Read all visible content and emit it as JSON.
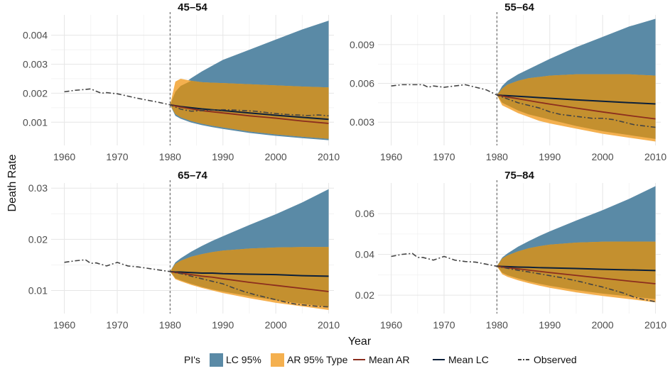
{
  "chart_data": {
    "type": "area",
    "xlabel": "Year",
    "ylabel": "Death Rate",
    "forecast_start": 1980,
    "x_ticks": [
      1960,
      1970,
      1980,
      1990,
      2000,
      2010
    ],
    "xlim": [
      1957.5,
      2011
    ],
    "legend": {
      "position": "bottom",
      "pi_title": "PI's",
      "pi_items": [
        {
          "label": "LC 95%",
          "color": "#5a8aa6"
        },
        {
          "label": "AR 95%",
          "color": "#f4b04f"
        }
      ],
      "type_title": "Type",
      "type_items": [
        {
          "label": "Mean AR",
          "color": "#8b2d1e",
          "dash": "solid"
        },
        {
          "label": "Mean LC",
          "color": "#0b1f3a",
          "dash": "solid"
        },
        {
          "label": "Observed",
          "color": "#444444",
          "dash": "dashdot"
        }
      ]
    },
    "panels": [
      {
        "title": "45–54",
        "ylim": [
          0.0002,
          0.0047
        ],
        "y_ticks": [
          0.001,
          0.002,
          0.003,
          0.004
        ],
        "y_tick_labels": [
          "0.001",
          "0.002",
          "0.003",
          "0.004"
        ],
        "observed": {
          "x": [
            1960,
            1962,
            1964,
            1965,
            1966,
            1967,
            1968,
            1970,
            1972,
            1974,
            1976,
            1978,
            1980,
            1982,
            1984,
            1986,
            1988,
            1990,
            1992,
            1994,
            1996,
            1998,
            2000,
            2002,
            2004,
            2006,
            2008,
            2010
          ],
          "y": [
            0.00205,
            0.0021,
            0.00213,
            0.00215,
            0.00207,
            0.002,
            0.00202,
            0.00198,
            0.0019,
            0.00182,
            0.00175,
            0.00168,
            0.0016,
            0.00145,
            0.00138,
            0.0014,
            0.00142,
            0.00143,
            0.00142,
            0.0014,
            0.00138,
            0.00134,
            0.0013,
            0.00127,
            0.00125,
            0.00123,
            0.00125,
            0.00122
          ]
        },
        "forecast_years": [
          1980,
          1981,
          1982,
          1984,
          1986,
          1988,
          1990,
          1995,
          2000,
          2005,
          2010
        ],
        "mean_lc": [
          0.0016,
          0.00157,
          0.00154,
          0.0015,
          0.00146,
          0.00143,
          0.0014,
          0.00132,
          0.00124,
          0.00117,
          0.0011
        ],
        "mean_ar": [
          0.0016,
          0.00156,
          0.00152,
          0.00146,
          0.0014,
          0.00136,
          0.00132,
          0.00122,
          0.00114,
          0.00104,
          0.00096
        ],
        "lc_lower": [
          0.0016,
          0.00122,
          0.00112,
          0.00099,
          0.0009,
          0.00083,
          0.00077,
          0.00063,
          0.00053,
          0.00045,
          0.00038
        ],
        "lc_upper": [
          0.0016,
          0.00205,
          0.00225,
          0.00252,
          0.00275,
          0.00295,
          0.00315,
          0.0035,
          0.00385,
          0.0042,
          0.0045
        ],
        "ar_lower": [
          0.0016,
          0.00128,
          0.00117,
          0.00104,
          0.00095,
          0.00088,
          0.00082,
          0.00068,
          0.00058,
          0.0005,
          0.00043
        ],
        "ar_upper": [
          0.0016,
          0.0024,
          0.0025,
          0.00243,
          0.00238,
          0.00236,
          0.00235,
          0.00231,
          0.00227,
          0.00223,
          0.0022
        ]
      },
      {
        "title": "55–64",
        "ylim": [
          0.0012,
          0.0113
        ],
        "y_ticks": [
          0.003,
          0.006,
          0.009
        ],
        "y_tick_labels": [
          "0.003",
          "0.006",
          "0.009"
        ],
        "observed": {
          "x": [
            1960,
            1962,
            1964,
            1966,
            1967,
            1968,
            1970,
            1972,
            1974,
            1976,
            1977,
            1978,
            1980,
            1982,
            1984,
            1986,
            1988,
            1990,
            1992,
            1994,
            1996,
            1998,
            2000,
            2002,
            2004,
            2006,
            2008,
            2010
          ],
          "y": [
            0.0058,
            0.0059,
            0.0059,
            0.0059,
            0.0057,
            0.0058,
            0.0057,
            0.0058,
            0.0059,
            0.0057,
            0.0056,
            0.0055,
            0.0051,
            0.0048,
            0.0045,
            0.0043,
            0.0041,
            0.0038,
            0.0036,
            0.0035,
            0.0034,
            0.0033,
            0.0033,
            0.0032,
            0.003,
            0.0028,
            0.0027,
            0.0026
          ]
        },
        "forecast_years": [
          1980,
          1981,
          1982,
          1984,
          1986,
          1988,
          1990,
          1995,
          2000,
          2005,
          2010
        ],
        "mean_lc": [
          0.0051,
          0.00507,
          0.00505,
          0.005,
          0.00495,
          0.0049,
          0.00485,
          0.00473,
          0.00462,
          0.00451,
          0.00441
        ],
        "mean_ar": [
          0.0051,
          0.00502,
          0.00495,
          0.00481,
          0.00467,
          0.00453,
          0.0044,
          0.00409,
          0.00379,
          0.00351,
          0.00325
        ],
        "lc_lower": [
          0.0051,
          0.0045,
          0.0043,
          0.0039,
          0.0036,
          0.0034,
          0.0032,
          0.0027,
          0.0023,
          0.002,
          0.0017
        ],
        "lc_upper": [
          0.0051,
          0.0058,
          0.0062,
          0.0067,
          0.0071,
          0.0075,
          0.0079,
          0.0088,
          0.0096,
          0.0104,
          0.011
        ],
        "ar_lower": [
          0.0051,
          0.0043,
          0.0041,
          0.0037,
          0.0034,
          0.0031,
          0.0029,
          0.0025,
          0.0021,
          0.0018,
          0.0015
        ],
        "ar_upper": [
          0.0051,
          0.0056,
          0.0059,
          0.0062,
          0.0064,
          0.0065,
          0.0066,
          0.0067,
          0.0067,
          0.0067,
          0.0066
        ]
      },
      {
        "title": "65–74",
        "ylim": [
          0.0055,
          0.031
        ],
        "y_ticks": [
          0.01,
          0.02,
          0.03
        ],
        "y_tick_labels": [
          "0.01",
          "0.02",
          "0.03"
        ],
        "observed": {
          "x": [
            1960,
            1962,
            1964,
            1965,
            1966,
            1968,
            1970,
            1972,
            1974,
            1976,
            1978,
            1980,
            1982,
            1984,
            1986,
            1988,
            1990,
            1992,
            1994,
            1996,
            1998,
            2000,
            2002,
            2004,
            2006,
            2008,
            2010
          ],
          "y": [
            0.0155,
            0.0158,
            0.016,
            0.0153,
            0.0154,
            0.0148,
            0.0155,
            0.0148,
            0.0146,
            0.0143,
            0.014,
            0.0137,
            0.0133,
            0.0128,
            0.0123,
            0.0118,
            0.0113,
            0.0105,
            0.0098,
            0.0092,
            0.0087,
            0.0082,
            0.0077,
            0.0073,
            0.0071,
            0.0069,
            0.0068
          ]
        },
        "forecast_years": [
          1980,
          1981,
          1982,
          1984,
          1986,
          1988,
          1990,
          1995,
          2000,
          2005,
          2010
        ],
        "mean_lc": [
          0.0137,
          0.0136,
          0.0136,
          0.0135,
          0.0134,
          0.0134,
          0.0133,
          0.0132,
          0.0131,
          0.0129,
          0.0128
        ],
        "mean_ar": [
          0.0137,
          0.0135,
          0.0134,
          0.0131,
          0.0128,
          0.0126,
          0.0123,
          0.0116,
          0.011,
          0.0104,
          0.0098
        ],
        "lc_lower": [
          0.0137,
          0.0124,
          0.012,
          0.0113,
          0.0107,
          0.0102,
          0.0098,
          0.0089,
          0.0081,
          0.0074,
          0.0068
        ],
        "lc_upper": [
          0.0137,
          0.0155,
          0.0163,
          0.0176,
          0.0187,
          0.0197,
          0.0206,
          0.0228,
          0.0249,
          0.0272,
          0.0298
        ],
        "ar_lower": [
          0.0137,
          0.0122,
          0.0118,
          0.0111,
          0.0105,
          0.01,
          0.0095,
          0.0085,
          0.0076,
          0.0069,
          0.0062
        ],
        "ar_upper": [
          0.0137,
          0.0152,
          0.0158,
          0.0166,
          0.0171,
          0.0175,
          0.0178,
          0.0182,
          0.0184,
          0.0185,
          0.0185
        ]
      },
      {
        "title": "75–84",
        "ylim": [
          0.011,
          0.075
        ],
        "y_ticks": [
          0.02,
          0.04,
          0.06
        ],
        "y_tick_labels": [
          "0.02",
          "0.04",
          "0.06"
        ],
        "observed": {
          "x": [
            1960,
            1962,
            1964,
            1965,
            1966,
            1968,
            1970,
            1972,
            1974,
            1976,
            1978,
            1980,
            1982,
            1984,
            1986,
            1988,
            1990,
            1992,
            1994,
            1996,
            1998,
            2000,
            2002,
            2004,
            2006,
            2008,
            2010
          ],
          "y": [
            0.039,
            0.04,
            0.0405,
            0.0385,
            0.0385,
            0.0372,
            0.039,
            0.0372,
            0.0365,
            0.0362,
            0.0352,
            0.0342,
            0.0332,
            0.0322,
            0.0314,
            0.0305,
            0.0296,
            0.0287,
            0.0276,
            0.0265,
            0.0252,
            0.024,
            0.0225,
            0.021,
            0.019,
            0.0178,
            0.0168
          ]
        },
        "forecast_years": [
          1980,
          1981,
          1982,
          1984,
          1986,
          1988,
          1990,
          1995,
          2000,
          2005,
          2010
        ],
        "mean_lc": [
          0.0342,
          0.0341,
          0.034,
          0.0338,
          0.0337,
          0.0335,
          0.0334,
          0.0331,
          0.0327,
          0.0324,
          0.0321
        ],
        "mean_ar": [
          0.0342,
          0.0338,
          0.0335,
          0.0329,
          0.0323,
          0.0317,
          0.0311,
          0.0297,
          0.0283,
          0.0269,
          0.0256
        ],
        "lc_lower": [
          0.0342,
          0.031,
          0.0298,
          0.0282,
          0.0268,
          0.0256,
          0.0246,
          0.0225,
          0.0208,
          0.0194,
          0.0181
        ],
        "lc_upper": [
          0.0342,
          0.0385,
          0.0405,
          0.0438,
          0.0465,
          0.049,
          0.0513,
          0.0566,
          0.0617,
          0.0672,
          0.0735
        ],
        "ar_lower": [
          0.0342,
          0.0303,
          0.029,
          0.0273,
          0.0259,
          0.0247,
          0.0236,
          0.0214,
          0.0196,
          0.0181,
          0.0165
        ],
        "ar_upper": [
          0.0342,
          0.038,
          0.0395,
          0.0415,
          0.043,
          0.044,
          0.0448,
          0.0458,
          0.0462,
          0.0463,
          0.0462
        ]
      }
    ]
  }
}
